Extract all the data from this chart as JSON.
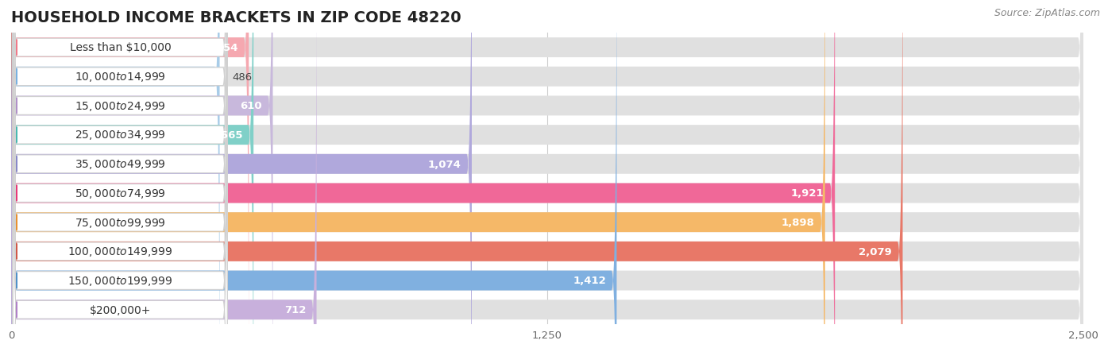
{
  "title": "HOUSEHOLD INCOME BRACKETS IN ZIP CODE 48220",
  "source": "Source: ZipAtlas.com",
  "categories": [
    "Less than $10,000",
    "$10,000 to $14,999",
    "$15,000 to $24,999",
    "$25,000 to $34,999",
    "$35,000 to $49,999",
    "$50,000 to $74,999",
    "$75,000 to $99,999",
    "$100,000 to $149,999",
    "$150,000 to $199,999",
    "$200,000+"
  ],
  "values": [
    554,
    486,
    610,
    565,
    1074,
    1921,
    1898,
    2079,
    1412,
    712
  ],
  "bar_colors": [
    "#f5a8b0",
    "#a8cce8",
    "#c8b8dc",
    "#80d0c8",
    "#b0a8dc",
    "#f06898",
    "#f5b868",
    "#e87868",
    "#80b0e0",
    "#c8b0dc"
  ],
  "label_circle_colors": [
    "#f07888",
    "#78b0e0",
    "#b090c8",
    "#48b8b0",
    "#8888c8",
    "#e83878",
    "#e89030",
    "#d05848",
    "#5090c8",
    "#b080c8"
  ],
  "xlim": [
    0,
    2500
  ],
  "xticks": [
    0,
    1250,
    2500
  ],
  "background_color": "#f0f0f0",
  "bar_bg_color": "#e0e0e0",
  "row_bg_color": "#f8f8f8",
  "title_fontsize": 14,
  "label_fontsize": 10,
  "value_fontsize": 9.5,
  "source_fontsize": 9
}
